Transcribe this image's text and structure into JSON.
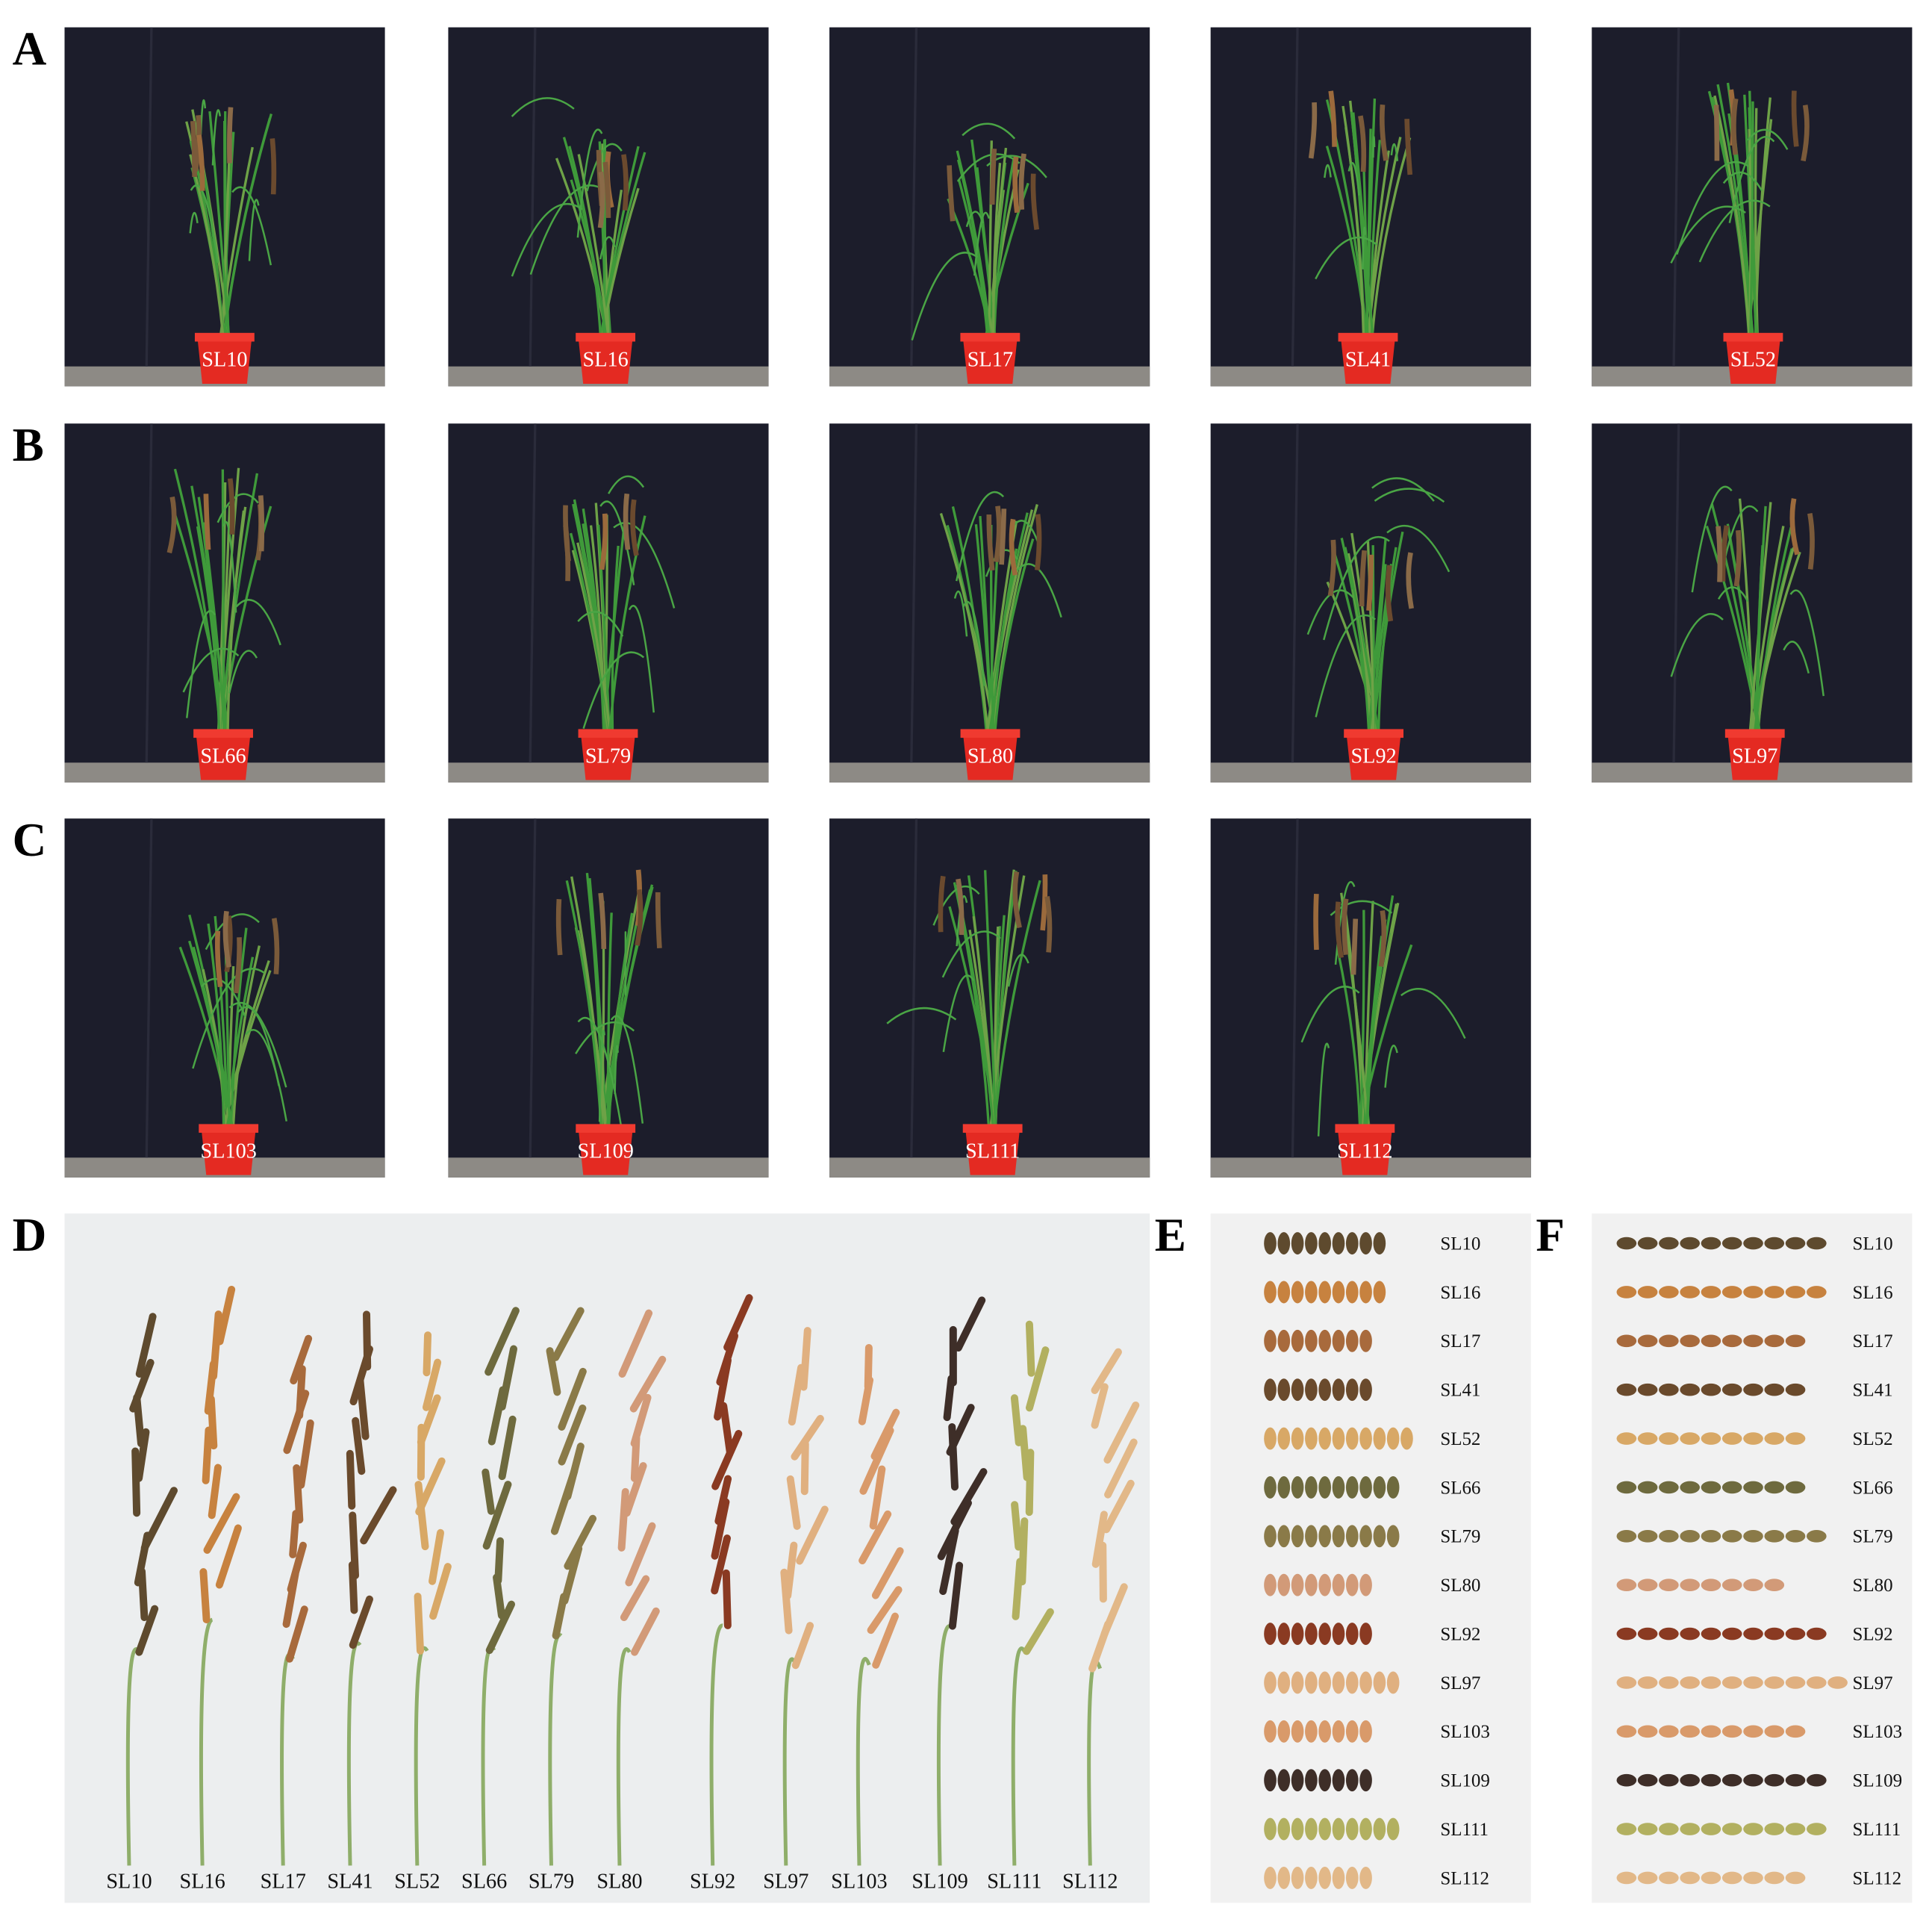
{
  "panels": [
    {
      "label": "A",
      "plants": [
        "SL10",
        "SL16",
        "SL17",
        "SL41",
        "SL52"
      ]
    },
    {
      "label": "B",
      "plants": [
        "SL66",
        "SL79",
        "SL80",
        "SL92",
        "SL97"
      ]
    },
    {
      "label": "C",
      "plants": [
        "SL103",
        "SL109",
        "SL111",
        "SL112"
      ]
    }
  ],
  "panicles": {
    "label": "D",
    "names": [
      "SL10",
      "SL16",
      "SL17",
      "SL41",
      "SL52",
      "SL66",
      "SL79",
      "SL80",
      "SL92",
      "SL97",
      "SL103",
      "SL109",
      "SL111",
      "SL112"
    ]
  },
  "seeds_e": {
    "label": "E",
    "names": [
      "SL10",
      "SL16",
      "SL17",
      "SL41",
      "SL52",
      "SL66",
      "SL79",
      "SL80",
      "SL92",
      "SL97",
      "SL103",
      "SL109",
      "SL111",
      "SL112"
    ]
  },
  "seeds_f": {
    "label": "F",
    "names": [
      "SL10",
      "SL16",
      "SL17",
      "SL41",
      "SL52",
      "SL66",
      "SL79",
      "SL80",
      "SL92",
      "SL97",
      "SL103",
      "SL109",
      "SL111",
      "SL112"
    ]
  }
}
